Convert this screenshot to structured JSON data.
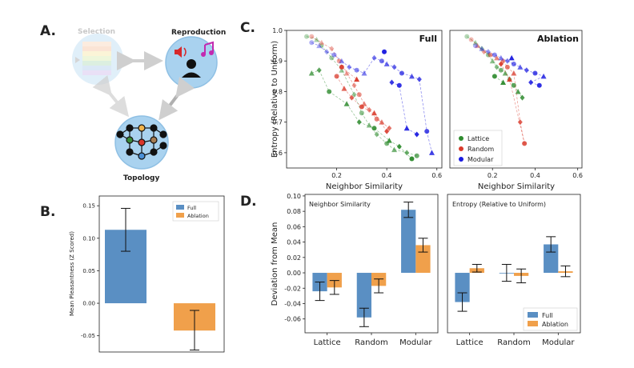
{
  "panels": {
    "a": {
      "letter": "A.",
      "nodes": [
        {
          "label": "Selection",
          "faded": true
        },
        {
          "label": "Reproduction",
          "faded": false
        },
        {
          "label": "Topology",
          "faded": false
        }
      ],
      "icons": [
        "speaker-icon",
        "music-note-icon",
        "person-icon",
        "network-graph-icon",
        "stacked-layers-icon"
      ]
    },
    "b": {
      "letter": "B.",
      "legend": [
        "Full",
        "Ablation"
      ]
    },
    "c": {
      "letter": "C.",
      "legend": [
        "Lattice",
        "Random",
        "Modular"
      ]
    },
    "d": {
      "letter": "D."
    }
  },
  "colors": {
    "full": "#5a8fc3",
    "ablation": "#f0a04b",
    "lattice": "#2e8b2e",
    "random": "#d93a2b",
    "modular": "#1a1ae0",
    "node_fill": "#a9d2ef"
  },
  "chart_data": [
    {
      "id": "B",
      "type": "bar",
      "categories": [
        "Full",
        "Ablation"
      ],
      "values": [
        0.113,
        -0.042
      ],
      "errors": [
        [
          0.08,
          0.146
        ],
        [
          -0.072,
          -0.011
        ]
      ],
      "ylabel": "Mean Pleasantness (Z Scored)",
      "ylim": [
        -0.075,
        0.165
      ],
      "yticks": [
        "0.15",
        "0.10",
        "0.05",
        "0.00",
        "-0.05"
      ],
      "ytick_values": [
        0.15,
        0.1,
        0.05,
        0.0,
        -0.05
      ],
      "legend": [
        "Full",
        "Ablation"
      ],
      "legend_position": "top-right"
    },
    {
      "id": "C-full",
      "type": "scatter",
      "title": "Full",
      "xlabel": "Neighbor Similarity",
      "ylabel": "Entropy (Relative to Uniform)",
      "xlim": [
        0.0,
        0.62
      ],
      "ylim": [
        0.55,
        1.0
      ],
      "xticks": [
        "0.2",
        "0.4",
        "0.6"
      ],
      "xtick_values": [
        0.2,
        0.4,
        0.6
      ],
      "yticks": [
        "1.0",
        "0.9",
        "0.8",
        "0.7",
        "0.6"
      ],
      "ytick_values": [
        1.0,
        0.9,
        0.8,
        0.7,
        0.6
      ],
      "series": [
        {
          "group": "Lattice",
          "x": [
            0.08,
            0.12,
            0.14,
            0.18,
            0.22,
            0.27,
            0.3,
            0.33,
            0.36,
            0.4,
            0.43,
            0.48,
            0.52,
            0.1,
            0.13,
            0.17,
            0.24,
            0.29,
            0.35,
            0.41,
            0.45,
            0.5
          ],
          "y": [
            0.98,
            0.97,
            0.95,
            0.91,
            0.87,
            0.79,
            0.73,
            0.69,
            0.66,
            0.63,
            0.61,
            0.6,
            0.59,
            0.86,
            0.87,
            0.8,
            0.76,
            0.7,
            0.68,
            0.64,
            0.62,
            0.58
          ]
        },
        {
          "group": "Random",
          "x": [
            0.1,
            0.14,
            0.18,
            0.21,
            0.24,
            0.27,
            0.29,
            0.31,
            0.33,
            0.36,
            0.38,
            0.41,
            0.2,
            0.23,
            0.26,
            0.3,
            0.35,
            0.4,
            0.22,
            0.28
          ],
          "y": [
            0.98,
            0.96,
            0.94,
            0.9,
            0.86,
            0.82,
            0.79,
            0.76,
            0.74,
            0.71,
            0.7,
            0.68,
            0.85,
            0.81,
            0.78,
            0.75,
            0.73,
            0.67,
            0.88,
            0.84
          ]
        },
        {
          "group": "Modular",
          "x": [
            0.1,
            0.13,
            0.16,
            0.19,
            0.22,
            0.25,
            0.28,
            0.31,
            0.35,
            0.38,
            0.4,
            0.43,
            0.46,
            0.5,
            0.53,
            0.56,
            0.58,
            0.42,
            0.45,
            0.48,
            0.52,
            0.39
          ],
          "y": [
            0.96,
            0.95,
            0.93,
            0.92,
            0.9,
            0.88,
            0.87,
            0.86,
            0.91,
            0.9,
            0.89,
            0.88,
            0.86,
            0.85,
            0.84,
            0.67,
            0.6,
            0.83,
            0.82,
            0.68,
            0.66,
            0.93
          ]
        }
      ]
    },
    {
      "id": "C-ablation",
      "type": "scatter",
      "title": "Ablation",
      "xlabel": "Neighbor Similarity",
      "xlim": [
        0.0,
        0.62
      ],
      "ylim": [
        0.55,
        1.0
      ],
      "xticks": [
        "0.2",
        "0.4",
        "0.6"
      ],
      "xtick_values": [
        0.2,
        0.4,
        0.6
      ],
      "legend": [
        "Lattice",
        "Random",
        "Modular"
      ],
      "legend_position": "bottom-left",
      "series": [
        {
          "group": "Lattice",
          "x": [
            0.08,
            0.12,
            0.15,
            0.18,
            0.2,
            0.22,
            0.24,
            0.26,
            0.28,
            0.3,
            0.32,
            0.34,
            0.21,
            0.25
          ],
          "y": [
            0.98,
            0.96,
            0.94,
            0.92,
            0.9,
            0.88,
            0.87,
            0.86,
            0.84,
            0.82,
            0.8,
            0.78,
            0.85,
            0.83
          ]
        },
        {
          "group": "Random",
          "x": [
            0.1,
            0.13,
            0.16,
            0.19,
            0.22,
            0.25,
            0.27,
            0.3,
            0.33,
            0.35,
            0.28,
            0.24
          ],
          "y": [
            0.97,
            0.95,
            0.93,
            0.92,
            0.91,
            0.9,
            0.88,
            0.86,
            0.7,
            0.63,
            0.84,
            0.89
          ]
        },
        {
          "group": "Modular",
          "x": [
            0.12,
            0.15,
            0.18,
            0.21,
            0.24,
            0.27,
            0.3,
            0.33,
            0.36,
            0.4,
            0.44,
            0.38,
            0.42,
            0.29
          ],
          "y": [
            0.95,
            0.94,
            0.93,
            0.92,
            0.91,
            0.9,
            0.89,
            0.88,
            0.87,
            0.86,
            0.85,
            0.83,
            0.82,
            0.91
          ]
        }
      ]
    },
    {
      "id": "D-left",
      "type": "bar",
      "title": "Neighbor Similarity",
      "ylabel": "Deviation from Mean",
      "categories": [
        "Lattice",
        "Random",
        "Modular"
      ],
      "series": [
        {
          "name": "Full",
          "values": [
            -0.024,
            -0.058,
            0.082
          ],
          "errors": [
            [
              -0.036,
              -0.012
            ],
            [
              -0.07,
              -0.046
            ],
            [
              0.072,
              0.092
            ]
          ]
        },
        {
          "name": "Ablation",
          "values": [
            -0.019,
            -0.017,
            0.036
          ],
          "errors": [
            [
              -0.028,
              -0.01
            ],
            [
              -0.026,
              -0.008
            ],
            [
              0.027,
              0.045
            ]
          ]
        }
      ],
      "ylim": [
        -0.078,
        0.102
      ],
      "yticks": [
        "0.10",
        "0.08",
        "0.06",
        "0.04",
        "0.02",
        "0.00",
        "-0.02",
        "-0.04",
        "-0.06"
      ],
      "ytick_values": [
        0.1,
        0.08,
        0.06,
        0.04,
        0.02,
        0.0,
        -0.02,
        -0.04,
        -0.06
      ]
    },
    {
      "id": "D-right",
      "type": "bar",
      "title": "Entropy (Relative to Uniform)",
      "categories": [
        "Lattice",
        "Random",
        "Modular"
      ],
      "series": [
        {
          "name": "Full",
          "values": [
            -0.038,
            0.0,
            0.037
          ],
          "errors": [
            [
              -0.05,
              -0.026
            ],
            [
              -0.011,
              0.011
            ],
            [
              0.027,
              0.047
            ]
          ]
        },
        {
          "name": "Ablation",
          "values": [
            0.006,
            -0.004,
            0.002
          ],
          "errors": [
            [
              0.001,
              0.011
            ],
            [
              -0.013,
              0.005
            ],
            [
              -0.005,
              0.009
            ]
          ]
        }
      ],
      "ylim": [
        -0.078,
        0.102
      ],
      "legend": [
        "Full",
        "Ablation"
      ],
      "legend_position": "bottom-right"
    }
  ]
}
